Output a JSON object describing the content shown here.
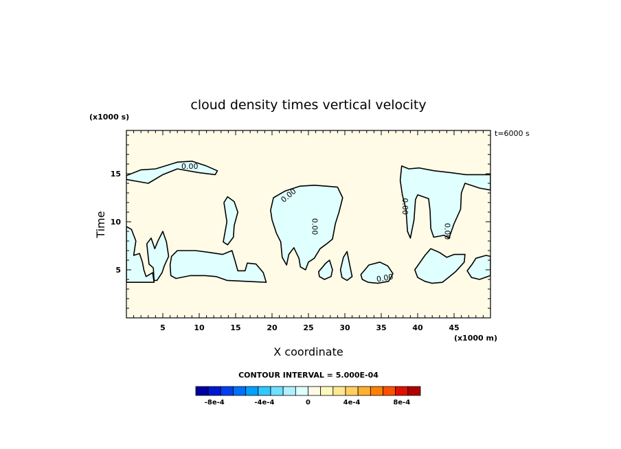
{
  "chart_data": {
    "type": "contour",
    "title": "cloud density times vertical velocity",
    "time_label": "t=6000 s",
    "xlabel": "X coordinate",
    "ylabel": "Time",
    "x_unit": "(x1000 m)",
    "y_unit": "(x1000 s)",
    "xlim": [
      0,
      50
    ],
    "ylim": [
      0,
      19.5
    ],
    "x_ticks": [
      5,
      10,
      15,
      20,
      25,
      30,
      35,
      40,
      45
    ],
    "y_ticks": [
      5,
      10,
      15
    ],
    "contour_level_label": "0.00",
    "contour_interval": "CONTOUR INTERVAL = 5.000E-04",
    "colorbar": {
      "colors": [
        "#0000a0",
        "#0018d0",
        "#0040f0",
        "#0070ff",
        "#00a0ff",
        "#30c8ff",
        "#70e0ff",
        "#b0f0ff",
        "#e0ffff",
        "#fffbe6",
        "#fff8c0",
        "#ffe890",
        "#ffd060",
        "#ffb030",
        "#ff8000",
        "#ff5000",
        "#e01000",
        "#b00000"
      ],
      "ticks": [
        {
          "label": "-8e-4",
          "pos": 1.5
        },
        {
          "label": "-4e-4",
          "pos": 5.5
        },
        {
          "label": "0",
          "pos": 9
        },
        {
          "label": "4e-4",
          "pos": 12.5
        },
        {
          "label": "8e-4",
          "pos": 16.5
        }
      ]
    },
    "background_color": "#fffbe6",
    "negative_color": "#e0ffff",
    "regions": [
      [
        [
          0,
          14.8
        ],
        [
          2,
          15.4
        ],
        [
          4,
          15.5
        ],
        [
          7,
          16.2
        ],
        [
          9,
          16.3
        ],
        [
          11,
          15.8
        ],
        [
          12.5,
          15.3
        ],
        [
          12.2,
          14.9
        ],
        [
          10,
          15.1
        ],
        [
          7,
          15.5
        ],
        [
          5,
          14.9
        ],
        [
          3,
          14.0
        ],
        [
          0,
          14.4
        ]
      ],
      [
        [
          0,
          9.5
        ],
        [
          0.7,
          9.2
        ],
        [
          1.3,
          8.0
        ],
        [
          1.0,
          6.5
        ],
        [
          1.8,
          6.7
        ],
        [
          2.2,
          5.8
        ],
        [
          2.4,
          5.0
        ],
        [
          2.7,
          4.3
        ],
        [
          3.6,
          4.7
        ],
        [
          3.8,
          3.7
        ],
        [
          0,
          3.7
        ]
      ],
      [
        [
          2.8,
          7.7
        ],
        [
          3.4,
          8.3
        ],
        [
          3.9,
          7.2
        ],
        [
          4.4,
          8.1
        ],
        [
          5,
          9.0
        ],
        [
          5.5,
          7.9
        ],
        [
          5.8,
          6.4
        ],
        [
          5.2,
          5.4
        ],
        [
          4.9,
          4.7
        ],
        [
          4.2,
          3.9
        ],
        [
          3.8,
          3.9
        ],
        [
          3.7,
          5.2
        ],
        [
          3.1,
          5.6
        ]
      ],
      [
        [
          6.2,
          6.4
        ],
        [
          7,
          7.0
        ],
        [
          9.5,
          7.0
        ],
        [
          11.5,
          6.8
        ],
        [
          13.2,
          6.6
        ],
        [
          14.5,
          7.0
        ],
        [
          14.9,
          6.0
        ],
        [
          15.3,
          4.9
        ],
        [
          16.3,
          4.9
        ],
        [
          16.6,
          5.7
        ],
        [
          17.8,
          5.6
        ],
        [
          18.8,
          4.7
        ],
        [
          19.2,
          3.7
        ],
        [
          13.8,
          3.9
        ],
        [
          12.3,
          4.3
        ],
        [
          10.8,
          4.4
        ],
        [
          8.8,
          4.4
        ],
        [
          6.8,
          4.1
        ],
        [
          6.1,
          4.4
        ],
        [
          6.0,
          5.5
        ]
      ],
      [
        [
          13.3,
          7.9
        ],
        [
          13.8,
          10.0
        ],
        [
          13.4,
          12.0
        ],
        [
          13.9,
          12.6
        ],
        [
          14.8,
          12.1
        ],
        [
          15.3,
          11.0
        ],
        [
          14.8,
          9.6
        ],
        [
          14.7,
          8.4
        ],
        [
          13.9,
          7.6
        ]
      ],
      [
        [
          19.8,
          11.2
        ],
        [
          20.2,
          12.5
        ],
        [
          21.8,
          13.2
        ],
        [
          23.8,
          13.7
        ],
        [
          25.8,
          13.8
        ],
        [
          27.5,
          13.7
        ],
        [
          29,
          13.6
        ],
        [
          29.7,
          12.5
        ],
        [
          29.2,
          11.0
        ],
        [
          28.7,
          9.8
        ],
        [
          28.3,
          8.2
        ],
        [
          27.5,
          7.7
        ],
        [
          26.6,
          7.2
        ],
        [
          25.8,
          6.2
        ],
        [
          25,
          5.8
        ],
        [
          24.6,
          5.0
        ],
        [
          23.9,
          5.3
        ],
        [
          23.7,
          6.2
        ],
        [
          23.0,
          7.3
        ],
        [
          22.3,
          6.6
        ],
        [
          22.0,
          5.5
        ],
        [
          21.4,
          6.3
        ],
        [
          21.2,
          7.9
        ],
        [
          20.6,
          8.8
        ],
        [
          20.0,
          10.2
        ]
      ],
      [
        [
          26.4,
          4.8
        ],
        [
          27.4,
          5.7
        ],
        [
          27.9,
          6.0
        ],
        [
          28.3,
          5.0
        ],
        [
          28.1,
          4.3
        ],
        [
          27.2,
          4.0
        ],
        [
          26.5,
          4.3
        ]
      ],
      [
        [
          29.4,
          5.0
        ],
        [
          29.8,
          6.3
        ],
        [
          30.3,
          6.9
        ],
        [
          30.7,
          5.4
        ],
        [
          31.0,
          4.3
        ],
        [
          30.3,
          3.9
        ],
        [
          29.6,
          4.2
        ]
      ],
      [
        [
          32.2,
          4.5
        ],
        [
          33.3,
          5.5
        ],
        [
          34.8,
          5.8
        ],
        [
          35.9,
          5.4
        ],
        [
          36.6,
          4.6
        ],
        [
          36.0,
          3.8
        ],
        [
          34.5,
          3.6
        ],
        [
          33.2,
          3.7
        ],
        [
          32.4,
          4.0
        ]
      ],
      [
        [
          37.6,
          14.3
        ],
        [
          37.8,
          15.8
        ],
        [
          38.8,
          15.5
        ],
        [
          40.2,
          15.6
        ],
        [
          42.3,
          15.3
        ],
        [
          44.6,
          15.1
        ],
        [
          46.6,
          14.9
        ],
        [
          50,
          14.9
        ],
        [
          50,
          13.3
        ],
        [
          48.5,
          13.5
        ],
        [
          47.3,
          13.8
        ],
        [
          46.5,
          14.0
        ],
        [
          46.0,
          13.0
        ],
        [
          45.9,
          11.3
        ],
        [
          45.0,
          9.8
        ],
        [
          44.3,
          8.3
        ],
        [
          43.6,
          8.6
        ],
        [
          43.0,
          8.5
        ],
        [
          42.2,
          8.4
        ],
        [
          41.8,
          9.3
        ],
        [
          41.7,
          11.2
        ],
        [
          41.5,
          12.4
        ],
        [
          40.0,
          12.8
        ],
        [
          39.7,
          12.3
        ],
        [
          39.5,
          10.2
        ],
        [
          39.0,
          8.3
        ],
        [
          38.6,
          9.0
        ],
        [
          38.4,
          11.3
        ],
        [
          37.9,
          12.8
        ]
      ],
      [
        [
          39.6,
          5.0
        ],
        [
          41.0,
          6.5
        ],
        [
          41.8,
          7.2
        ],
        [
          43.0,
          6.8
        ],
        [
          44.0,
          6.3
        ],
        [
          45.0,
          6.6
        ],
        [
          46.5,
          6.6
        ],
        [
          46.4,
          5.8
        ],
        [
          45.2,
          4.8
        ],
        [
          44.4,
          4.3
        ],
        [
          43.4,
          3.7
        ],
        [
          42.0,
          3.6
        ],
        [
          41.0,
          3.8
        ],
        [
          40.0,
          4.2
        ]
      ],
      [
        [
          46.8,
          4.9
        ],
        [
          47.5,
          5.6
        ],
        [
          48.0,
          6.2
        ],
        [
          49.4,
          6.5
        ],
        [
          50,
          6.4
        ],
        [
          50,
          4.4
        ],
        [
          48.5,
          4.0
        ],
        [
          47.4,
          4.2
        ]
      ]
    ]
  }
}
